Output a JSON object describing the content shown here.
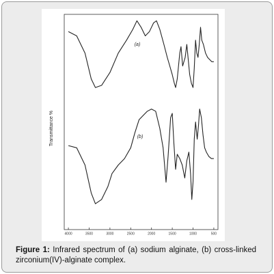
{
  "caption": {
    "label": "Figure 1:",
    "text": "Infrared spectrum of (a) sodium alginate, (b) cross-linked zirconium(IV)-alginate complex."
  },
  "chart_data": {
    "type": "line",
    "ylabel": "Transmittance %",
    "xlim": [
      4100,
      400
    ],
    "ylim": [
      0,
      100
    ],
    "xticks": [
      4000,
      3500,
      3000,
      2500,
      2000,
      1500,
      1000,
      500
    ],
    "annotations": [
      "(a)",
      "(b)"
    ],
    "series": [
      {
        "name": "(a)",
        "color": "#222222",
        "x": [
          4000,
          3800,
          3600,
          3450,
          3350,
          3200,
          3000,
          2800,
          2600,
          2450,
          2350,
          2250,
          2150,
          2050,
          1950,
          1880,
          1800,
          1700,
          1620,
          1560,
          1500,
          1450,
          1420,
          1380,
          1320,
          1290,
          1250,
          1190,
          1150,
          1110,
          1080,
          1040,
          1000,
          970,
          940,
          910,
          880,
          850,
          820,
          790,
          750,
          700,
          650,
          600,
          550,
          500
        ],
        "values": [
          92,
          90,
          82,
          70,
          66,
          67,
          73,
          82,
          88,
          93,
          97,
          94,
          90,
          92,
          96,
          97,
          93,
          86,
          80,
          76,
          72,
          68,
          66,
          70,
          82,
          85,
          76,
          80,
          86,
          78,
          72,
          68,
          66,
          75,
          88,
          82,
          80,
          86,
          94,
          88,
          86,
          82,
          80,
          79,
          78,
          78
        ]
      },
      {
        "name": "(b)",
        "color": "#222222",
        "x": [
          4000,
          3800,
          3600,
          3450,
          3350,
          3200,
          3050,
          2950,
          2800,
          2650,
          2500,
          2400,
          2300,
          2200,
          2100,
          2000,
          1900,
          1800,
          1720,
          1650,
          1600,
          1540,
          1500,
          1460,
          1420,
          1380,
          1320,
          1260,
          1200,
          1150,
          1100,
          1060,
          1030,
          1000,
          970,
          940,
          900,
          870,
          840,
          800,
          760,
          720,
          680,
          620,
          560,
          500
        ],
        "values": [
          39,
          38,
          30,
          17,
          12,
          14,
          20,
          26,
          30,
          33,
          38,
          45,
          51,
          53,
          55,
          56,
          55,
          47,
          38,
          22,
          34,
          52,
          54,
          40,
          28,
          35,
          33,
          30,
          24,
          32,
          36,
          26,
          14,
          22,
          42,
          50,
          42,
          48,
          56,
          52,
          44,
          38,
          36,
          34,
          33,
          33
        ]
      }
    ]
  }
}
